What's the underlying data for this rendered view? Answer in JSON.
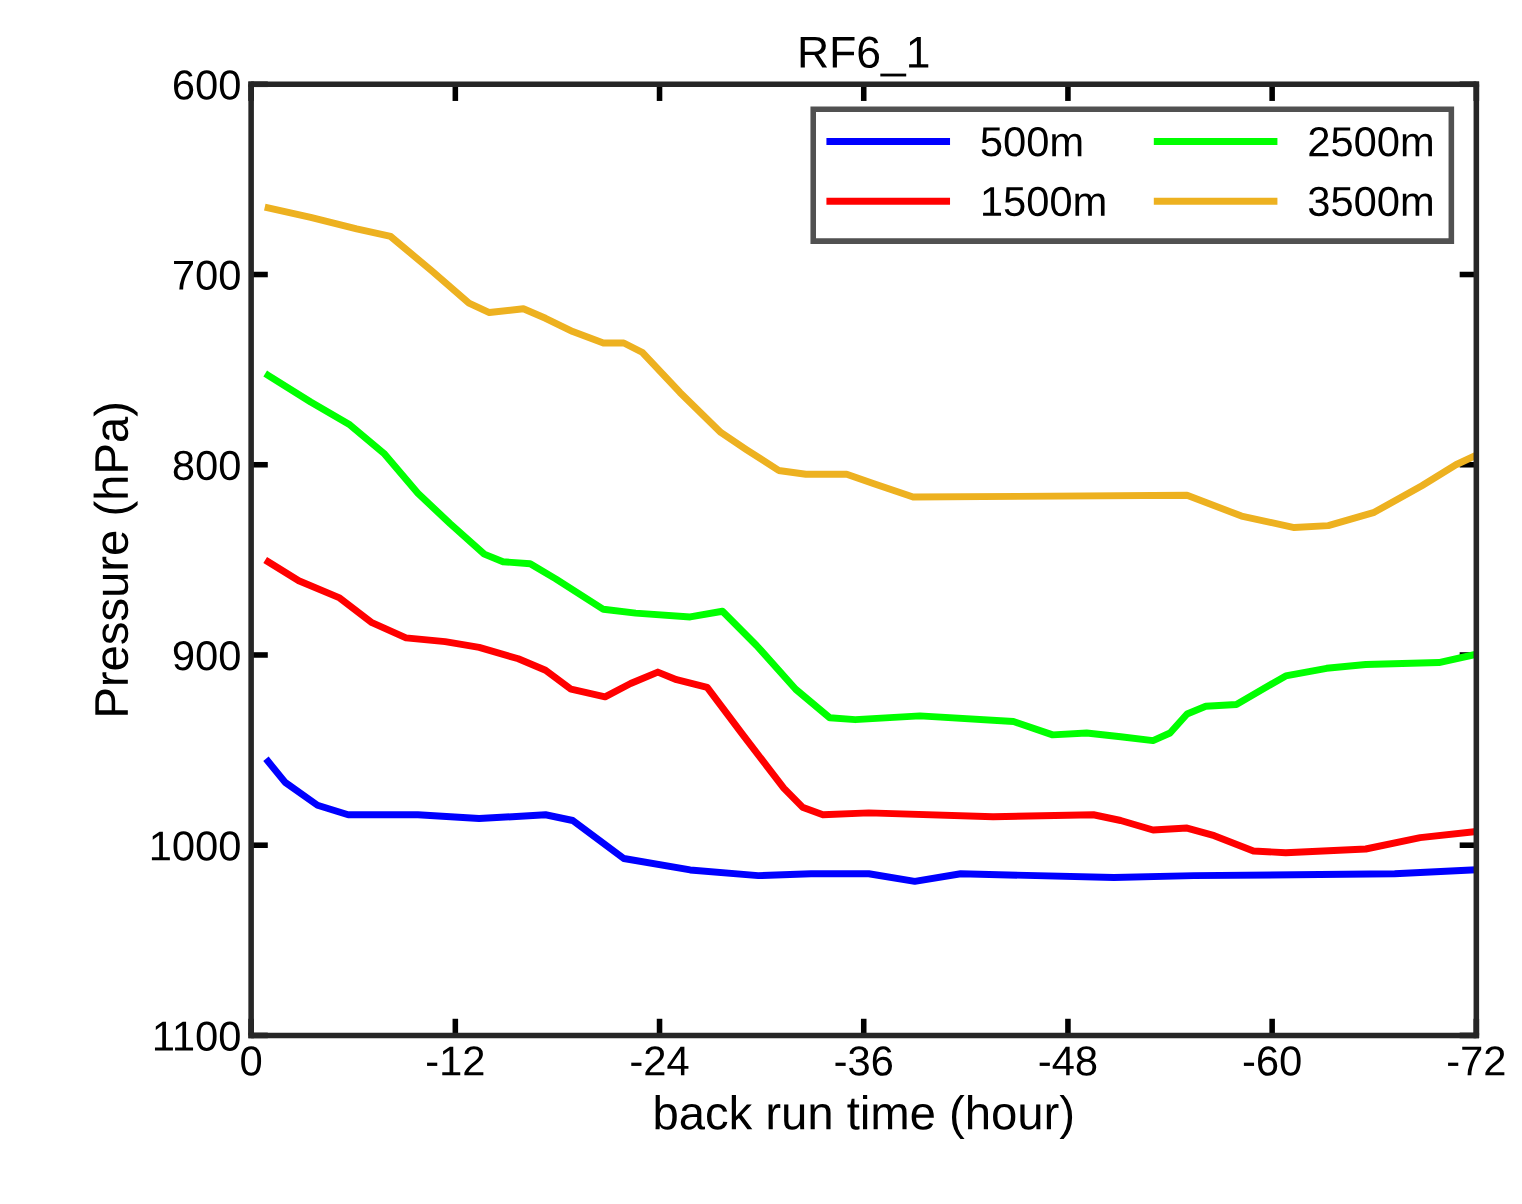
{
  "chart_data": {
    "type": "line",
    "title": "RF6_1",
    "xlabel": "back run time (hour)",
    "ylabel": "Pressure (hPa)",
    "xlim": [
      0,
      -72
    ],
    "xticks": [
      0,
      -12,
      -24,
      -36,
      -48,
      -60,
      -72
    ],
    "ylim": [
      1100,
      600
    ],
    "yticks": [
      600,
      700,
      800,
      900,
      1000,
      1100
    ],
    "grid": false,
    "legend": "top right",
    "line_style": "solid",
    "marker": "none",
    "series": [
      {
        "name": "500m",
        "color": "#0000ff",
        "x": [
          -1,
          -2,
          -3.9,
          -5.7,
          -9.8,
          -13.4,
          -17.3,
          -18.9,
          -20.4,
          -21.9,
          -25.8,
          -29.8,
          -32.9,
          -36.3,
          -39,
          -41.7,
          -50.7,
          -55.4,
          -67.2,
          -71.8
        ],
        "values": [
          956,
          967,
          979,
          984,
          984,
          986,
          984,
          987,
          997,
          1007,
          1013,
          1016,
          1015,
          1015,
          1019,
          1015,
          1017,
          1016,
          1015,
          1013
        ]
      },
      {
        "name": "1500m",
        "color": "#ff0000",
        "x": [
          -1,
          -2.8,
          -5.2,
          -7.1,
          -9.1,
          -11.4,
          -13.4,
          -15.7,
          -17.3,
          -18.8,
          -20.8,
          -22.3,
          -23.9,
          -25,
          -26.8,
          -28.9,
          -31.3,
          -32.4,
          -33.6,
          -36.3,
          -43.6,
          -49.5,
          -51.1,
          -53,
          -55,
          -56.6,
          -58.9,
          -60.8,
          -65.5,
          -68.7,
          -71.8
        ],
        "values": [
          851,
          861,
          870,
          883,
          891,
          893,
          896,
          902,
          908,
          918,
          922,
          915,
          909,
          913,
          917,
          942,
          970,
          980,
          984,
          983,
          985,
          984,
          987,
          992,
          991,
          995,
          1003,
          1004,
          1002,
          996,
          993
        ]
      },
      {
        "name": "2500m",
        "color": "#00ff00",
        "x": [
          -1,
          -3.5,
          -5.8,
          -7.8,
          -9.8,
          -11.7,
          -13.7,
          -14.8,
          -16.4,
          -17.9,
          -20.7,
          -22.6,
          -25.8,
          -27.7,
          -29.7,
          -32,
          -34,
          -35.5,
          -39.3,
          -44.8,
          -47.1,
          -49.1,
          -51.1,
          -53,
          -54,
          -55,
          -56.1,
          -57.9,
          -60.8,
          -63.2,
          -65.5,
          -69.8,
          -71.8
        ],
        "values": [
          753,
          767,
          779,
          794,
          815,
          831,
          847,
          851,
          852,
          860,
          876,
          878,
          880,
          877,
          895,
          918,
          933,
          934,
          932,
          935,
          942,
          941,
          943,
          945,
          941,
          931,
          927,
          926,
          911,
          907,
          905,
          904,
          900
        ]
      },
      {
        "name": "3500m",
        "color": "#edb120",
        "x": [
          -1,
          -3.5,
          -6.2,
          -8.2,
          -10.6,
          -12.8,
          -14,
          -16,
          -17.3,
          -18.9,
          -20.7,
          -21.9,
          -23,
          -25.2,
          -27.6,
          -29.1,
          -31,
          -32.6,
          -35,
          -36.6,
          -38.9,
          -55,
          -58.2,
          -61.3,
          -63.3,
          -66,
          -68.8,
          -70.8,
          -72
        ],
        "values": [
          665,
          670,
          676,
          680,
          698,
          715,
          720,
          718,
          723,
          730,
          736,
          736,
          741,
          762,
          783,
          792,
          803,
          805,
          805,
          810,
          817,
          816,
          827,
          833,
          832,
          825,
          811,
          800,
          795
        ]
      }
    ]
  }
}
